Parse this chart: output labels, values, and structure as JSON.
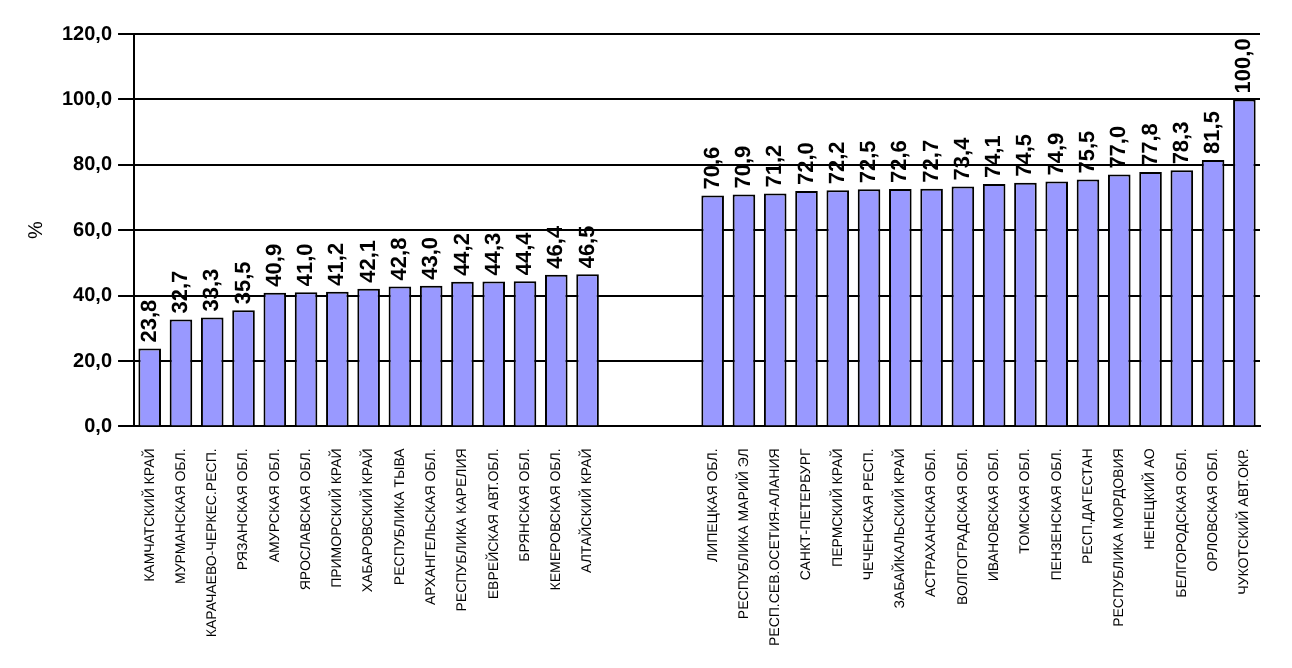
{
  "chart_data": {
    "type": "bar",
    "ylabel": "%",
    "categories": [
      "КАМЧАТСКИЙ КРАЙ",
      "МУРМАНСКАЯ ОБЛ.",
      "КАРАЧАЕВО-ЧЕРКЕС.РЕСП.",
      "РЯЗАНСКАЯ ОБЛ.",
      "АМУРСКАЯ ОБЛ.",
      "ЯРОСЛАВСКАЯ ОБЛ.",
      "ПРИМОРСКИЙ КРАЙ",
      "ХАБАРОВСКИЙ КРАЙ",
      "РЕСПУБЛИКА ТЫВА",
      "АРХАНГЕЛЬСКАЯ ОБЛ.",
      "РЕСПУБЛИКА КАРЕЛИЯ",
      "ЕВРЕЙСКАЯ АВТ.ОБЛ.",
      "БРЯНСКАЯ ОБЛ.",
      "КЕМЕРОВСКАЯ ОБЛ.",
      "АЛТАЙСКИЙ КРАЙ",
      null,
      null,
      null,
      "ЛИПЕЦКАЯ ОБЛ.",
      "РЕСПУБЛИКА МАРИЙ ЭЛ",
      "РЕСП.СЕВ.ОСЕТИЯ-АЛАНИЯ",
      "САНКТ-ПЕТЕРБУРГ",
      "ПЕРМСКИЙ КРАЙ",
      "ЧЕЧЕНСКАЯ РЕСП.",
      "ЗАБАЙКАЛЬСКИЙ КРАЙ",
      "АСТРАХАНСКАЯ ОБЛ.",
      "ВОЛГОГРАДСКАЯ ОБЛ.",
      "ИВАНОВСКАЯ ОБЛ.",
      "ТОМСКАЯ ОБЛ.",
      "ПЕНЗЕНСКАЯ ОБЛ.",
      "РЕСП.ДАГЕСТАН",
      "РЕСПУБЛИКА МОРДОВИЯ",
      "НЕНЕЦКИЙ АО",
      "БЕЛГОРОДСКАЯ ОБЛ.",
      "ОРЛОВСКАЯ ОБЛ.",
      "ЧУКОТСКИЙ АВТ.ОКР."
    ],
    "values": [
      23.8,
      32.7,
      33.3,
      35.5,
      40.9,
      41.0,
      41.2,
      42.1,
      42.8,
      43.0,
      44.2,
      44.3,
      44.4,
      46.4,
      46.5,
      null,
      null,
      null,
      70.6,
      70.9,
      71.2,
      72.0,
      72.2,
      72.5,
      72.6,
      72.7,
      73.4,
      74.1,
      74.5,
      74.9,
      75.5,
      77.0,
      77.8,
      78.3,
      81.5,
      100.0
    ],
    "value_labels": [
      "23,8",
      "32,7",
      "33,3",
      "35,5",
      "40,9",
      "41,0",
      "41,2",
      "42,1",
      "42,8",
      "43,0",
      "44,2",
      "44,3",
      "44,4",
      "46,4",
      "46,5",
      null,
      null,
      null,
      "70,6",
      "70,9",
      "71,2",
      "72,0",
      "72,2",
      "72,5",
      "72,6",
      "72,7",
      "73,4",
      "74,1",
      "74,5",
      "74,9",
      "75,5",
      "77,0",
      "77,8",
      "78,3",
      "81,5",
      "100,0"
    ],
    "color": "#9999ff",
    "ylim": [
      0,
      120
    ],
    "yticks": [
      {
        "value": 0,
        "label": "0,0"
      },
      {
        "value": 20,
        "label": "20,0"
      },
      {
        "value": 40,
        "label": "40,0"
      },
      {
        "value": 60,
        "label": "60,0"
      },
      {
        "value": 80,
        "label": "80,0"
      },
      {
        "value": 100,
        "label": "100,0"
      },
      {
        "value": 120,
        "label": "120,0"
      }
    ],
    "grid": "y",
    "legend": false
  }
}
